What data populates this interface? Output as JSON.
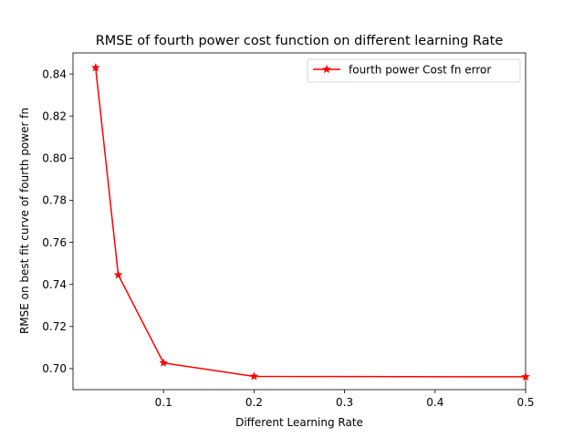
{
  "chart_data": {
    "type": "line",
    "title": "RMSE of  fourth power cost function on different learning Rate",
    "xlabel": "Different Learning Rate",
    "ylabel": "RMSE on best fit curve of fourth power fn",
    "xlim": [
      0.0,
      0.5
    ],
    "ylim": [
      0.69,
      0.85
    ],
    "xticks": [
      0.1,
      0.2,
      0.3,
      0.4,
      0.5
    ],
    "xtick_labels": [
      "0.1",
      "0.2",
      "0.3",
      "0.4",
      "0.5"
    ],
    "yticks": [
      0.7,
      0.72,
      0.74,
      0.76,
      0.78,
      0.8,
      0.82,
      0.84
    ],
    "ytick_labels": [
      "0.70",
      "0.72",
      "0.74",
      "0.76",
      "0.78",
      "0.80",
      "0.82",
      "0.84"
    ],
    "grid": false,
    "legend_position": "top-right",
    "series": [
      {
        "name": "fourth power Cost fn error",
        "color": "#ff0000",
        "marker": "star",
        "x": [
          0.025,
          0.05,
          0.1,
          0.2,
          0.5
        ],
        "y": [
          0.843,
          0.7445,
          0.7027,
          0.6963,
          0.6961
        ]
      }
    ]
  }
}
